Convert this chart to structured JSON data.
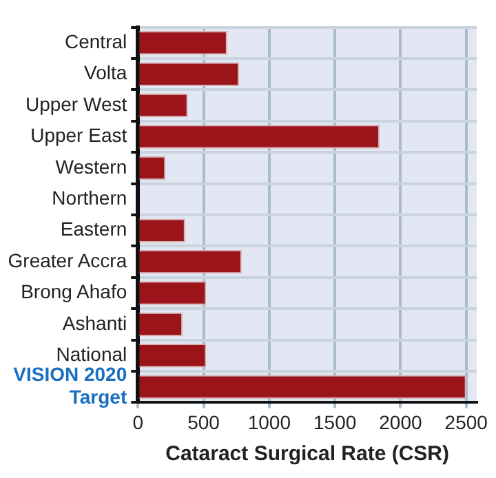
{
  "chart_data": {
    "type": "bar",
    "orientation": "horizontal",
    "xlabel": "Cataract Surgical Rate (CSR)",
    "categories": [
      "Central",
      "Volta",
      "Upper West",
      "Upper East",
      "Western",
      "Northern",
      "Eastern",
      "Greater Accra",
      "Brong Ahafo",
      "Ashanti",
      "National",
      "VISION 2020 Target"
    ],
    "values": [
      680,
      770,
      380,
      1840,
      210,
      0,
      360,
      790,
      520,
      340,
      520,
      2500
    ],
    "color": "#9b1419",
    "xlim": [
      0,
      2580
    ],
    "xticks": [
      0,
      500,
      1000,
      1500,
      2000,
      2500
    ],
    "grid": true,
    "legend": false
  }
}
